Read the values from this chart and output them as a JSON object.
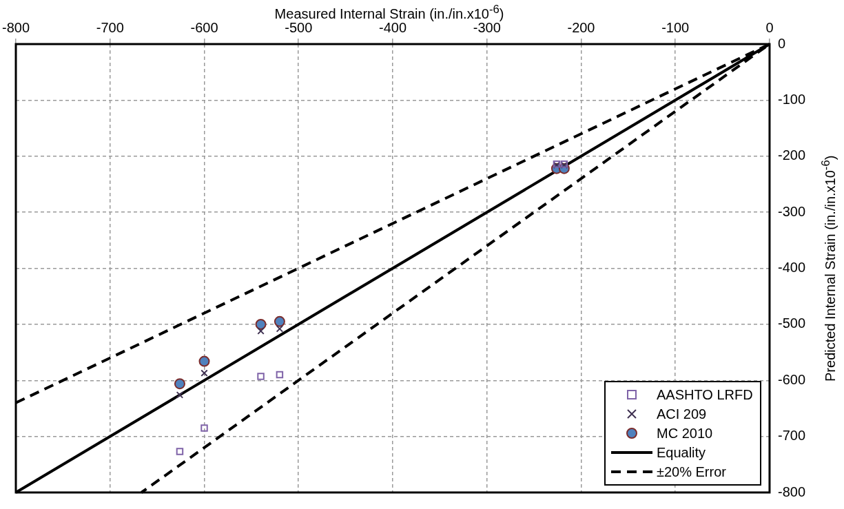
{
  "chart_data": {
    "type": "scatter",
    "xlabel": "Measured Internal Strain (in./in.x10$^{-6}$)",
    "ylabel": "Predicted Internal Strain (in./in.x10$^{-6}$)",
    "xlim": [
      -800,
      0
    ],
    "ylim": [
      -800,
      0
    ],
    "xticks": [
      -800,
      -700,
      -600,
      -500,
      -400,
      -300,
      -200,
      -100,
      0
    ],
    "yticks": [
      -800,
      -700,
      -600,
      -500,
      -400,
      -300,
      -200,
      -100,
      0
    ],
    "grid": true,
    "legend": "bottom right",
    "series": [
      {
        "name": "AASHTO LRFD",
        "type": "scatter",
        "marker": "square",
        "color": "#7f63a8",
        "x": [
          -626,
          -600,
          -540,
          -520,
          -226,
          -218
        ],
        "values": [
          -727,
          -685,
          -593,
          -590,
          -214,
          -214
        ]
      },
      {
        "name": "ACI 209",
        "type": "scatter",
        "marker": "cross",
        "color": "#3f3151",
        "x": [
          -626,
          -600,
          -540,
          -520,
          -226,
          -218
        ],
        "values": [
          -626,
          -587,
          -512,
          -508,
          -216,
          -216
        ]
      },
      {
        "name": "MC 2010",
        "type": "scatter",
        "marker": "circle",
        "color": "#4f81bd",
        "x": [
          -626,
          -600,
          -540,
          -520,
          -226,
          -218
        ],
        "values": [
          -606,
          -566,
          -500,
          -495,
          -222,
          -222
        ]
      },
      {
        "name": "Equality",
        "type": "line",
        "marker": "none",
        "line_style": "solid",
        "color": "#000000",
        "x": [
          -800,
          0
        ],
        "values": [
          -800,
          0
        ]
      },
      {
        "name": "±20% Error",
        "type": "line",
        "marker": "none",
        "line_style": "dashed",
        "color": "#000000",
        "x": [
          -800,
          0,
          -666.7
        ],
        "values": [
          -640,
          0,
          -800
        ]
      }
    ]
  }
}
